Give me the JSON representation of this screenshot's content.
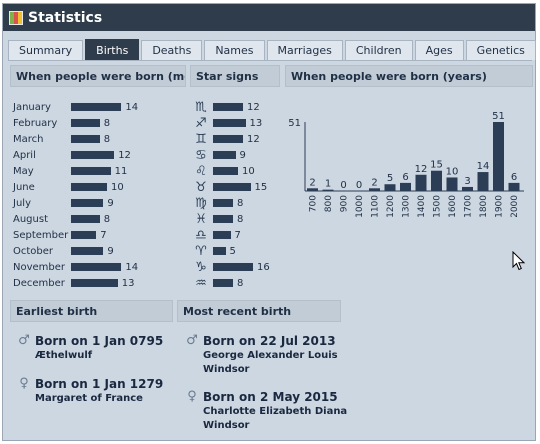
{
  "window": {
    "title": "Statistics"
  },
  "tabs": [
    "Summary",
    "Births",
    "Deaths",
    "Names",
    "Marriages",
    "Children",
    "Ages",
    "Genetics"
  ],
  "active_tab": "Births",
  "sections": {
    "months": "When people were born (months)",
    "signs": "Star signs",
    "years": "When people were born (years)",
    "earliest": "Earliest birth",
    "recent": "Most recent birth"
  },
  "months": [
    {
      "label": "January",
      "value": 14
    },
    {
      "label": "February",
      "value": 8
    },
    {
      "label": "March",
      "value": 8
    },
    {
      "label": "April",
      "value": 12
    },
    {
      "label": "May",
      "value": 11
    },
    {
      "label": "June",
      "value": 10
    },
    {
      "label": "July",
      "value": 9
    },
    {
      "label": "August",
      "value": 8
    },
    {
      "label": "September",
      "value": 7
    },
    {
      "label": "October",
      "value": 9
    },
    {
      "label": "November",
      "value": 14
    },
    {
      "label": "December",
      "value": 13
    }
  ],
  "signs": [
    {
      "icon": "scorpio-icon",
      "glyph": "♏",
      "value": 12
    },
    {
      "icon": "sagittarius-icon",
      "glyph": "♐",
      "value": 13
    },
    {
      "icon": "gemini-icon",
      "glyph": "♊",
      "value": 12
    },
    {
      "icon": "cancer-icon",
      "glyph": "♋",
      "value": 9
    },
    {
      "icon": "leo-icon",
      "glyph": "♌",
      "value": 10
    },
    {
      "icon": "taurus-icon",
      "glyph": "♉",
      "value": 15
    },
    {
      "icon": "virgo-icon",
      "glyph": "♍",
      "value": 8
    },
    {
      "icon": "pisces-icon",
      "glyph": "♓",
      "value": 8
    },
    {
      "icon": "libra-icon",
      "glyph": "♎",
      "value": 7
    },
    {
      "icon": "aries-icon",
      "glyph": "♈",
      "value": 5
    },
    {
      "icon": "capricorn-icon",
      "glyph": "♑",
      "value": 16
    },
    {
      "icon": "aquarius-icon",
      "glyph": "♒",
      "value": 8
    }
  ],
  "chart_data": {
    "type": "bar",
    "categories": [
      "700",
      "800",
      "900",
      "1000",
      "1100",
      "1200",
      "1300",
      "1400",
      "1500",
      "1600",
      "1700",
      "1800",
      "1900",
      "2000"
    ],
    "values": [
      2,
      1,
      0,
      0,
      2,
      5,
      6,
      12,
      15,
      10,
      3,
      14,
      51,
      6
    ],
    "y_axis_label": "51",
    "ylim": [
      0,
      51
    ]
  },
  "earliest": [
    {
      "symbol": "♂",
      "icon": "male-icon",
      "date": "Born on 1 Jan 0795",
      "name": "Æthelwulf"
    },
    {
      "symbol": "♀",
      "icon": "female-icon",
      "date": "Born on 1 Jan 1279",
      "name": "Margaret of France"
    }
  ],
  "recent": [
    {
      "symbol": "♂",
      "icon": "male-icon",
      "date": "Born on 22 Jul 2013",
      "name": "George Alexander Louis Windsor"
    },
    {
      "symbol": "♀",
      "icon": "female-icon",
      "date": "Born on 2 May 2015",
      "name": "Charlotte Elizabeth Diana Windsor"
    }
  ],
  "colors": {
    "bar": "#2c3e55",
    "titlebar": "#2f3c4c",
    "panel": "#cdd7e2"
  }
}
